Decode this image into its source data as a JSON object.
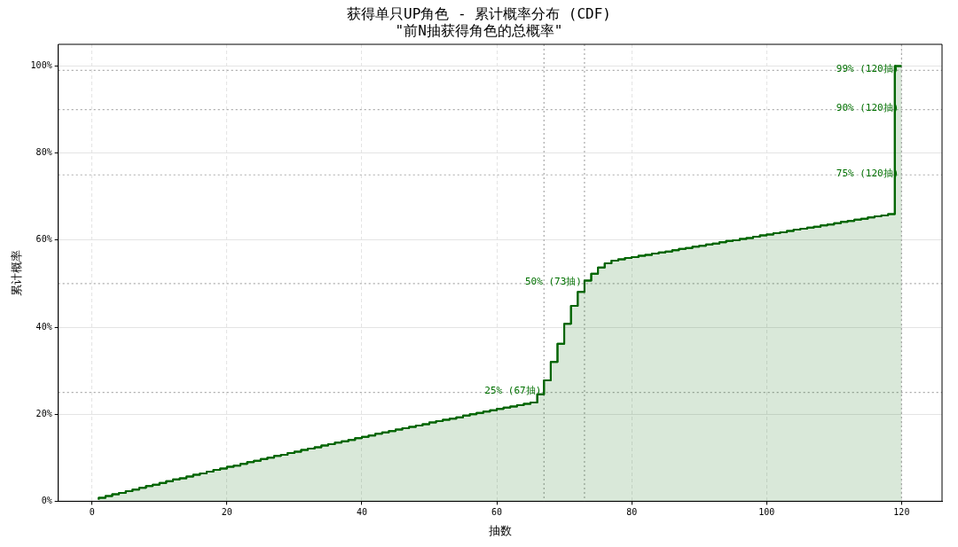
{
  "chart_data": {
    "type": "step",
    "title": "获得单只UP角色 - 累计概率分布 (CDF)",
    "subtitle": "\"前N抽获得角色的总概率\"",
    "xlabel": "抽数",
    "ylabel": "累计概率",
    "x": [
      1,
      2,
      3,
      4,
      5,
      6,
      7,
      8,
      9,
      10,
      11,
      12,
      13,
      14,
      15,
      16,
      17,
      18,
      19,
      20,
      21,
      22,
      23,
      24,
      25,
      26,
      27,
      28,
      29,
      30,
      31,
      32,
      33,
      34,
      35,
      36,
      37,
      38,
      39,
      40,
      41,
      42,
      43,
      44,
      45,
      46,
      47,
      48,
      49,
      50,
      51,
      52,
      53,
      54,
      55,
      56,
      57,
      58,
      59,
      60,
      61,
      62,
      63,
      64,
      65,
      66,
      67,
      68,
      69,
      70,
      71,
      72,
      73,
      74,
      75,
      76,
      77,
      78,
      79,
      80,
      81,
      82,
      83,
      84,
      85,
      86,
      87,
      88,
      89,
      90,
      91,
      92,
      93,
      94,
      95,
      96,
      97,
      98,
      99,
      100,
      101,
      102,
      103,
      104,
      105,
      106,
      107,
      108,
      109,
      110,
      111,
      112,
      113,
      114,
      115,
      116,
      117,
      118,
      119,
      120
    ],
    "series": [
      {
        "color": "#006400",
        "type": "area",
        "values": [
          0.4,
          0.8,
          1.2,
          1.6,
          1.9,
          2.3,
          2.7,
          3.1,
          3.5,
          3.8,
          4.2,
          4.6,
          5.0,
          5.3,
          5.7,
          6.1,
          6.4,
          6.8,
          7.2,
          7.5,
          7.9,
          8.2,
          8.6,
          9.0,
          9.3,
          9.7,
          10.0,
          10.4,
          10.7,
          11.1,
          11.4,
          11.8,
          12.1,
          12.4,
          12.8,
          13.1,
          13.5,
          13.8,
          14.1,
          14.5,
          14.8,
          15.1,
          15.5,
          15.8,
          16.1,
          16.5,
          16.8,
          17.1,
          17.4,
          17.7,
          18.1,
          18.4,
          18.7,
          19.0,
          19.3,
          19.7,
          20.0,
          20.3,
          20.6,
          20.9,
          21.2,
          21.5,
          21.8,
          22.1,
          22.4,
          22.7,
          24.6,
          27.8,
          32.0,
          36.2,
          40.8,
          44.9,
          48.1,
          50.7,
          52.3,
          53.7,
          54.7,
          55.3,
          55.6,
          55.9,
          56.1,
          56.4,
          56.6,
          56.9,
          57.2,
          57.4,
          57.7,
          58.0,
          58.2,
          58.5,
          58.7,
          59.0,
          59.2,
          59.5,
          59.8,
          60.0,
          60.3,
          60.5,
          60.8,
          61.1,
          61.3,
          61.6,
          61.8,
          62.1,
          62.4,
          62.6,
          62.9,
          63.1,
          63.4,
          63.6,
          63.9,
          64.2,
          64.4,
          64.7,
          64.9,
          65.2,
          65.5,
          65.7,
          66.0,
          100
        ]
      },
      {
        "color": "#006400",
        "values": [
          0.4,
          0.8,
          1.2,
          1.6,
          1.9,
          2.3,
          2.7,
          3.1,
          3.5,
          3.8,
          4.2,
          4.6,
          5.0,
          5.3,
          5.7,
          6.1,
          6.4,
          6.8,
          7.2,
          7.5,
          7.9,
          8.2,
          8.6,
          9.0,
          9.3,
          9.7,
          10.0,
          10.4,
          10.7,
          11.1,
          11.4,
          11.8,
          12.1,
          12.4,
          12.8,
          13.1,
          13.5,
          13.8,
          14.1,
          14.5,
          14.8,
          15.1,
          15.5,
          15.8,
          16.1,
          16.5,
          16.8,
          17.1,
          17.4,
          17.7,
          18.1,
          18.4,
          18.7,
          19.0,
          19.3,
          19.7,
          20.0,
          20.3,
          20.6,
          20.9,
          21.2,
          21.5,
          21.8,
          22.1,
          22.4,
          22.7,
          24.6,
          27.8,
          32.0,
          36.2,
          40.8,
          44.9,
          48.1,
          50.7,
          52.3,
          53.7,
          54.7,
          55.3,
          55.6,
          55.9,
          56.1,
          56.4,
          56.6,
          56.9,
          57.2,
          57.4,
          57.7,
          58.0,
          58.2,
          58.5,
          58.7,
          59.0,
          59.2,
          59.5,
          59.8,
          60.0,
          60.3,
          60.5,
          60.8,
          61.1,
          61.3,
          61.6,
          61.8,
          62.1,
          62.4,
          62.6,
          62.9,
          63.1,
          63.4,
          63.6,
          63.9,
          64.2,
          64.4,
          64.7,
          64.9,
          65.2,
          65.5,
          65.7,
          66.0,
          100
        ]
      }
    ],
    "xlim": [
      -5,
      126
    ],
    "xticks": [
      0,
      20,
      40,
      60,
      80,
      100,
      120
    ],
    "ylim": [
      0,
      105
    ],
    "yticks": [
      {
        "value": 0,
        "label": "0%"
      },
      {
        "value": 20,
        "label": "20%"
      },
      {
        "value": 40,
        "label": "40%"
      },
      {
        "value": 60,
        "label": "60%"
      },
      {
        "value": 80,
        "label": "80%"
      },
      {
        "value": 100,
        "label": "100%"
      }
    ],
    "grid": true,
    "legend": false,
    "ref_lines": [
      {
        "axis": "y",
        "value": 25,
        "color": "#aaaaaa",
        "line_style": "dotted"
      },
      {
        "axis": "y",
        "value": 50,
        "color": "#aaaaaa",
        "line_style": "dotted"
      },
      {
        "axis": "y",
        "value": 75,
        "color": "#aaaaaa",
        "line_style": "dotted"
      },
      {
        "axis": "y",
        "value": 90,
        "color": "#aaaaaa",
        "line_style": "dotted"
      },
      {
        "axis": "y",
        "value": 99,
        "color": "#aaaaaa",
        "line_style": "dotted"
      },
      {
        "axis": "x",
        "value": 67,
        "color": "#aaaaaa",
        "line_style": "dotted"
      },
      {
        "axis": "x",
        "value": 73,
        "color": "#aaaaaa",
        "line_style": "dotted"
      },
      {
        "axis": "x",
        "value": 120,
        "color": "#aaaaaa",
        "line_style": "dotted"
      }
    ],
    "annotations": [
      {
        "text": "25% (67抽)",
        "x": 67,
        "y": 25
      },
      {
        "text": "50% (73抽)",
        "x": 73,
        "y": 50
      },
      {
        "text": "75% (120抽)",
        "x": 120,
        "y": 75
      },
      {
        "text": "90% (120抽)",
        "x": 120,
        "y": 90
      },
      {
        "text": "99% (120抽)",
        "x": 120,
        "y": 99
      }
    ]
  }
}
